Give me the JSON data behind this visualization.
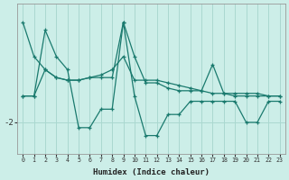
{
  "xlabel": "Humidex (Indice chaleur)",
  "bg_color": "#cceee8",
  "line_color": "#1a7a6e",
  "grid_color": "#aad8d0",
  "x": [
    0,
    1,
    2,
    3,
    4,
    5,
    6,
    7,
    8,
    9,
    10,
    11,
    12,
    13,
    14,
    15,
    16,
    17,
    18,
    19,
    20,
    21,
    22,
    23
  ],
  "line1_y": [
    -1.0,
    -1.0,
    1.5,
    0.5,
    0.0,
    -2.2,
    -2.2,
    -1.5,
    -1.5,
    1.8,
    -1.0,
    -2.5,
    -2.5,
    -1.7,
    -1.7,
    -1.2,
    -1.2,
    -1.2,
    -1.2,
    -1.2,
    -2.0,
    -2.0,
    -1.2,
    -1.2
  ],
  "line2_y": [
    -1.0,
    -1.0,
    0.0,
    -0.3,
    -0.4,
    -0.4,
    -0.3,
    -0.2,
    0.0,
    0.5,
    -0.4,
    -0.4,
    -0.4,
    -0.5,
    -0.6,
    -0.7,
    -0.8,
    -0.9,
    -0.9,
    -0.9,
    -0.9,
    -0.9,
    -1.0,
    -1.0
  ],
  "line3_y": [
    1.8,
    0.5,
    0.0,
    -0.3,
    -0.4,
    -0.4,
    -0.3,
    -0.3,
    -0.3,
    1.8,
    0.5,
    -0.5,
    -0.5,
    -0.7,
    -0.8,
    -0.8,
    -0.8,
    0.2,
    -0.9,
    -1.0,
    -1.0,
    -1.0,
    -1.0,
    -1.0
  ],
  "ylim": [
    -3.2,
    2.5
  ],
  "yticks": [
    -2
  ],
  "xticks": [
    0,
    1,
    2,
    3,
    4,
    5,
    6,
    7,
    8,
    9,
    10,
    11,
    12,
    13,
    14,
    15,
    16,
    17,
    18,
    19,
    20,
    21,
    22,
    23
  ]
}
